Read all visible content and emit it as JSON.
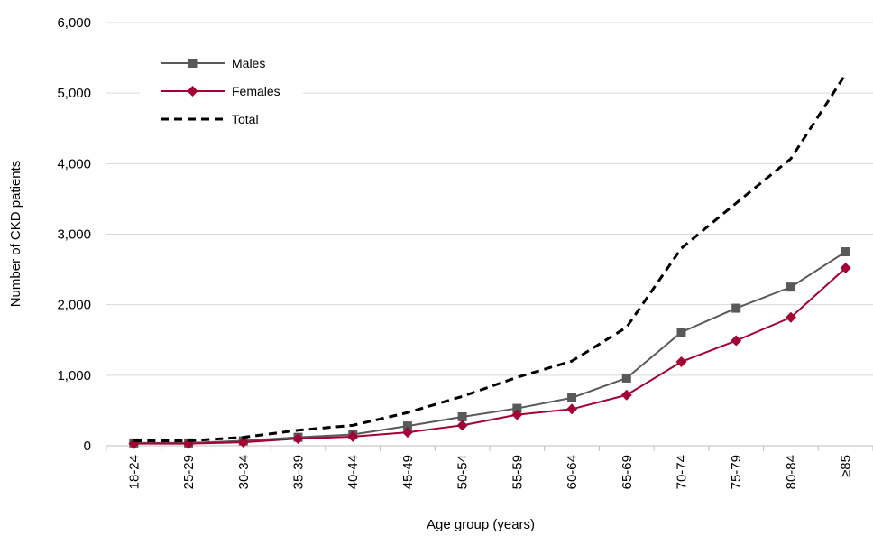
{
  "chart_data": {
    "type": "line",
    "title": "",
    "xlabel": "Age group (years)",
    "ylabel": "Number of CKD patients",
    "ylim": [
      0,
      6000
    ],
    "yticks": [
      0,
      1000,
      2000,
      3000,
      4000,
      5000,
      6000
    ],
    "ytick_labels": [
      "0",
      "1,000",
      "2,000",
      "3,000",
      "4,000",
      "5,000",
      "6,000"
    ],
    "grid": "horizontal",
    "legend_position": "top-left",
    "categories": [
      "18-24",
      "25-29",
      "30-34",
      "35-39",
      "40-44",
      "45-49",
      "50-54",
      "55-59",
      "60-64",
      "65-69",
      "70-74",
      "75-79",
      "80-84",
      "≥85"
    ],
    "series": [
      {
        "name": "Males",
        "color": "#595959",
        "marker": "square",
        "line_style": "solid",
        "values": [
          40,
          40,
          70,
          120,
          160,
          280,
          410,
          530,
          680,
          960,
          1610,
          1950,
          2250,
          2750
        ]
      },
      {
        "name": "Females",
        "color": "#A50034",
        "marker": "diamond",
        "line_style": "solid",
        "values": [
          30,
          30,
          50,
          100,
          130,
          190,
          290,
          440,
          520,
          720,
          1190,
          1490,
          1820,
          2520
        ]
      },
      {
        "name": "Total",
        "color": "#000000",
        "marker": "none",
        "line_style": "dashed",
        "values": [
          70,
          70,
          120,
          220,
          290,
          470,
          700,
          970,
          1200,
          1680,
          2800,
          3440,
          4070,
          5270
        ]
      }
    ]
  }
}
